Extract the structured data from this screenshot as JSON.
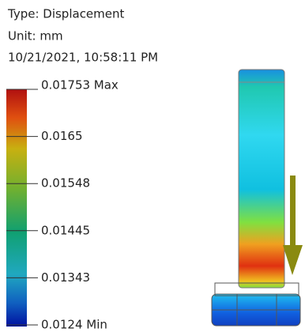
{
  "header": {
    "type_line": "Type: Displacement",
    "unit_line": "Unit: mm",
    "timestamp": "10/21/2021, 10:58:11 PM"
  },
  "legend": {
    "labels": [
      "0.01753 Max",
      "0.0165",
      "0.01548",
      "0.01445",
      "0.01343",
      "0.0124 Min"
    ]
  }
}
